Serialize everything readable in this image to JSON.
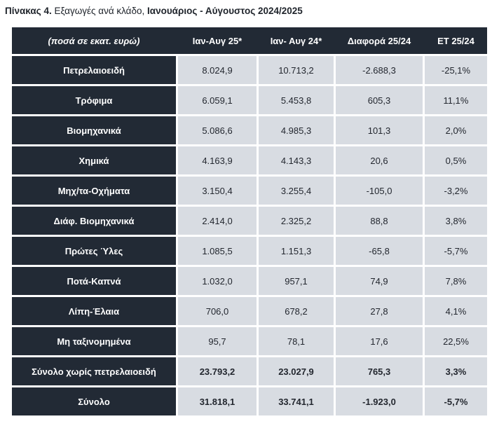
{
  "title": {
    "prefix": "Πίνακας 4.",
    "middle": " Εξαγωγές ανά κλάδο, ",
    "suffix": "Ιανουάριος - Αύγουστος 2024/2025"
  },
  "colors": {
    "header_bg": "#222a35",
    "label_bg": "#222a35",
    "cell_bg": "#d8dce2",
    "header_text": "#ffffff",
    "cell_text": "#23272f",
    "gap": "#ffffff"
  },
  "table": {
    "columns": [
      "(ποσά σε εκατ. ευρώ)",
      "Ιαν-Αυγ 25*",
      "Ιαν- Αυγ 24*",
      "Διαφορά 25/24",
      "ΕΤ 25/24"
    ],
    "rows": [
      {
        "label": "Πετρελαιοειδή",
        "values": [
          "8.024,9",
          "10.713,2",
          "-2.688,3",
          "-25,1%"
        ],
        "bold": false
      },
      {
        "label": "Τρόφιμα",
        "values": [
          "6.059,1",
          "5.453,8",
          "605,3",
          "11,1%"
        ],
        "bold": false
      },
      {
        "label": "Βιομηχανικά",
        "values": [
          "5.086,6",
          "4.985,3",
          "101,3",
          "2,0%"
        ],
        "bold": false
      },
      {
        "label": "Χημικά",
        "values": [
          "4.163,9",
          "4.143,3",
          "20,6",
          "0,5%"
        ],
        "bold": false
      },
      {
        "label": "Μηχ/τα-Οχήματα",
        "values": [
          "3.150,4",
          "3.255,4",
          "-105,0",
          "-3,2%"
        ],
        "bold": false
      },
      {
        "label": "Διάφ. Βιομηχανικά",
        "values": [
          "2.414,0",
          "2.325,2",
          "88,8",
          "3,8%"
        ],
        "bold": false
      },
      {
        "label": "Πρώτες Ύλες",
        "values": [
          "1.085,5",
          "1.151,3",
          "-65,8",
          "-5,7%"
        ],
        "bold": false
      },
      {
        "label": "Ποτά-Καπνά",
        "values": [
          "1.032,0",
          "957,1",
          "74,9",
          "7,8%"
        ],
        "bold": false
      },
      {
        "label": "Λίπη-Έλαια",
        "values": [
          "706,0",
          "678,2",
          "27,8",
          "4,1%"
        ],
        "bold": false
      },
      {
        "label": "Μη ταξινομημένα",
        "values": [
          "95,7",
          "78,1",
          "17,6",
          "22,5%"
        ],
        "bold": false
      },
      {
        "label": "Σύνολο χωρίς πετρελαιοειδή",
        "values": [
          "23.793,2",
          "23.027,9",
          "765,3",
          "3,3%"
        ],
        "bold": true
      },
      {
        "label": "Σύνολο",
        "values": [
          "31.818,1",
          "33.741,1",
          "-1.923,0",
          "-5,7%"
        ],
        "bold": true
      }
    ]
  }
}
